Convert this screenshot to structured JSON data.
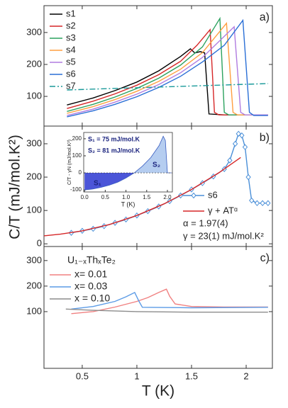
{
  "chart_data": [
    {
      "type": "line",
      "panel_label": "a)",
      "xlim": [
        0.15,
        2.24
      ],
      "xticks": [
        0.5,
        1.0,
        1.5,
        2.0
      ],
      "show_xtick_labels": false,
      "ylim": [
        7,
        384
      ],
      "yticks": [
        100,
        200,
        300
      ],
      "legend": "upper left",
      "series": [
        {
          "name": "s1",
          "color": "#000000",
          "x": [
            0.36,
            0.6,
            0.8,
            1.0,
            1.2,
            1.4,
            1.49,
            1.53,
            1.58,
            1.62,
            1.66,
            1.8,
            2.2
          ],
          "values": [
            73,
            95,
            118,
            145,
            180,
            225,
            249,
            236,
            240,
            236,
            45,
            42,
            42
          ]
        },
        {
          "name": "s2",
          "color": "#d62728",
          "x": [
            0.36,
            0.6,
            0.8,
            1.0,
            1.2,
            1.4,
            1.55,
            1.67,
            1.71,
            1.75,
            2.2
          ],
          "values": [
            62,
            85,
            108,
            135,
            168,
            210,
            260,
            309,
            50,
            42,
            42
          ]
        },
        {
          "name": "s3",
          "color": "#2ca25f",
          "x": [
            0.36,
            0.6,
            0.8,
            1.0,
            1.2,
            1.4,
            1.6,
            1.76,
            1.8,
            1.84,
            2.2
          ],
          "values": [
            53,
            75,
            98,
            125,
            157,
            198,
            255,
            344,
            50,
            42,
            42
          ]
        },
        {
          "name": "s4",
          "color": "#ff9f40",
          "x": [
            0.36,
            0.6,
            0.8,
            1.0,
            1.2,
            1.4,
            1.6,
            1.82,
            1.88,
            1.92,
            2.2
          ],
          "values": [
            47,
            68,
            90,
            116,
            147,
            185,
            237,
            329,
            50,
            42,
            42
          ]
        },
        {
          "name": "s5",
          "color": "#b07ce0",
          "x": [
            0.36,
            0.6,
            0.8,
            1.0,
            1.2,
            1.4,
            1.6,
            1.89,
            1.95,
            1.99,
            2.2
          ],
          "values": [
            40,
            60,
            82,
            107,
            137,
            174,
            222,
            318,
            50,
            42,
            42
          ]
        },
        {
          "name": "s6",
          "color": "#2a6fd6",
          "x": [
            0.36,
            0.6,
            0.8,
            1.0,
            1.2,
            1.4,
            1.6,
            1.8,
            1.97,
            2.03,
            2.07,
            2.2
          ],
          "values": [
            36,
            55,
            75,
            99,
            128,
            163,
            208,
            260,
            338,
            50,
            40,
            40
          ]
        },
        {
          "name": "s7",
          "color": "#1a9a9a",
          "dash": "8 3 2 3",
          "x": [
            0.36,
            2.2
          ],
          "values": [
            120,
            140
          ]
        }
      ]
    },
    {
      "type": "line",
      "panel_label": "b)",
      "ylabel": "C/T (mJ/mol.K²)",
      "xlim": [
        0.15,
        2.24
      ],
      "xticks": [
        0.5,
        1.0,
        1.5,
        2.0
      ],
      "show_xtick_labels": false,
      "ylim": [
        -8,
        353
      ],
      "yticks": [
        0,
        100,
        200,
        300
      ],
      "legend": "lower right",
      "series": [
        {
          "name": "s6",
          "color": "#4a8fd8",
          "marker": "diamond",
          "x": [
            0.4,
            0.5,
            0.6,
            0.7,
            0.8,
            0.9,
            1.0,
            1.1,
            1.2,
            1.3,
            1.4,
            1.5,
            1.6,
            1.7,
            1.8,
            1.85,
            1.9,
            1.93,
            1.96,
            1.99,
            2.02,
            2.05,
            2.1,
            2.15,
            2.2
          ],
          "values": [
            33,
            39,
            45,
            53,
            63,
            73,
            85,
            98,
            112,
            128,
            145,
            163,
            182,
            202,
            224,
            250,
            300,
            330,
            325,
            290,
            200,
            130,
            122,
            122,
            122
          ]
        },
        {
          "name": "γ + ATᵅ",
          "color": "#d62728",
          "x": [
            0.15,
            0.3,
            0.5,
            0.75,
            1.0,
            1.25,
            1.5,
            1.75,
            1.95
          ],
          "values": [
            24,
            29,
            39,
            58,
            85,
            120,
            163,
            213,
            259
          ]
        }
      ],
      "annotations": [
        "α = 1.97(4)",
        "γ = 23(1) mJ/mol.K²"
      ]
    },
    {
      "type": "line",
      "panel_label": "c)",
      "xlabel": "T (K)",
      "xlim": [
        0.15,
        2.24
      ],
      "xticks": [
        0.5,
        1.0,
        1.5,
        2.0
      ],
      "show_xtick_labels": true,
      "ylim": [
        -122,
        355
      ],
      "yticks": [
        100,
        200,
        300
      ],
      "legend": "upper left",
      "legend_title": "U₁₋ₓThₓTe₂",
      "series": [
        {
          "name": "x= 0.01",
          "color": "#f08080",
          "x": [
            0.4,
            0.6,
            0.8,
            1.0,
            1.1,
            1.2,
            1.27,
            1.3,
            1.35,
            1.5,
            1.8,
            2.2
          ],
          "values": [
            92,
            100,
            118,
            140,
            155,
            175,
            188,
            160,
            130,
            120,
            118,
            118
          ]
        },
        {
          "name": "x= 0.03",
          "color": "#5b9be6",
          "x": [
            0.4,
            0.6,
            0.8,
            0.9,
            0.98,
            1.02,
            1.05,
            1.5,
            2.2
          ],
          "values": [
            110,
            120,
            140,
            158,
            175,
            140,
            117,
            115,
            117
          ]
        },
        {
          "name": "x = 0.10",
          "color": "#8c8c8c",
          "x": [
            0.35,
            0.6,
            1.0,
            1.5,
            2.2
          ],
          "values": [
            110,
            105,
            100,
            98,
            98
          ]
        }
      ]
    },
    {
      "type": "area",
      "xlabel": "T (K)",
      "ylabel": "C/T - γN (mJ/mol.K²)",
      "xlim": [
        -0.02,
        2.12
      ],
      "xticks": [
        {
          "value": 0,
          "label": "0.0"
        },
        0.5,
        {
          "value": 1,
          "label": "1.0"
        },
        1.5,
        {
          "value": 2,
          "label": "2.0"
        }
      ],
      "ylim": [
        -112,
        237
      ],
      "yticks": [
        -100,
        0,
        100,
        200
      ],
      "colors": [
        "#4b55d8",
        "#b5cdf0"
      ],
      "x": [
        0,
        0.2,
        0.4,
        0.6,
        0.8,
        1.0,
        1.2,
        1.4,
        1.6,
        1.8,
        1.9,
        1.95,
        2.0,
        2.1
      ],
      "values": [
        -100,
        -95,
        -85,
        -72,
        -55,
        -30,
        0,
        40,
        90,
        160,
        215,
        190,
        0,
        0
      ],
      "annotations": [
        "S₁ = 75 mJ/mol.K",
        "S₂ = 81 mJ/mol.K",
        "S₁",
        "S₂"
      ]
    }
  ]
}
